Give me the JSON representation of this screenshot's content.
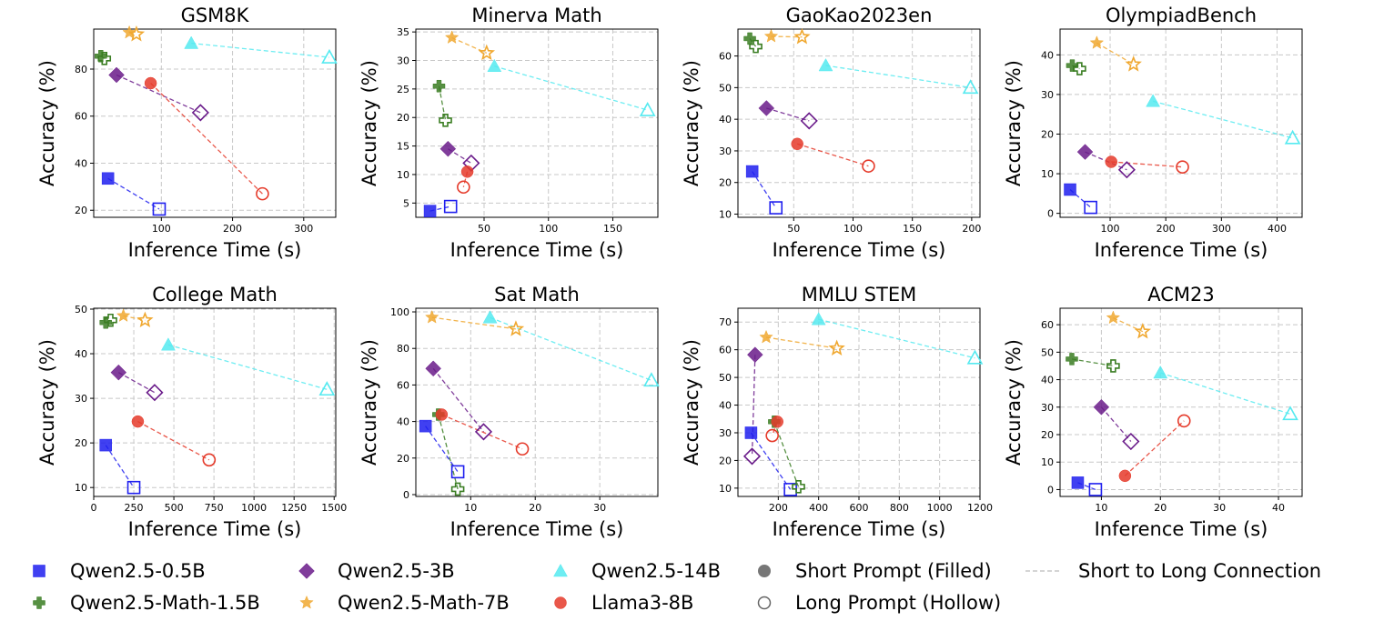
{
  "chart_data": {
    "type": "scatter",
    "xlabel": "Inference Time (s)",
    "ylabel": "Accuracy (%)",
    "grid": true,
    "legend_position": "bottom",
    "series": [
      {
        "key": "q05",
        "name": "Qwen2.5-0.5B",
        "color": "#1f1fef",
        "marker": "square"
      },
      {
        "key": "q15",
        "name": "Qwen2.5-Math-1.5B",
        "color": "#3a7d22",
        "marker": "plus"
      },
      {
        "key": "q3",
        "name": "Qwen2.5-3B",
        "color": "#6a1b8a",
        "marker": "diamond"
      },
      {
        "key": "q7",
        "name": "Qwen2.5-Math-7B",
        "color": "#f0a830",
        "marker": "star"
      },
      {
        "key": "q14",
        "name": "Qwen2.5-14B",
        "color": "#55eaf0",
        "marker": "triangle"
      },
      {
        "key": "l8",
        "name": "Llama3-8B",
        "color": "#e53a2a",
        "marker": "circle"
      }
    ],
    "style_legend": [
      {
        "label": "Short Prompt (Filled)",
        "marker": "filled-circle"
      },
      {
        "label": "Long Prompt (Hollow)",
        "marker": "hollow-circle"
      },
      {
        "label": "Short to Long Connection",
        "marker": "dashed-line"
      }
    ],
    "panels": [
      {
        "title": "GSM8K",
        "xlim": [
          5,
          345
        ],
        "ylim": [
          17,
          97
        ],
        "xticks": [
          100,
          200,
          300
        ],
        "yticks": [
          20,
          40,
          60,
          80
        ],
        "points": {
          "q05": {
            "short": [
              25,
              33.5
            ],
            "long": [
              97,
              20.5
            ]
          },
          "q15": {
            "short": [
              15,
              85.5
            ],
            "long": [
              20,
              84.5
            ]
          },
          "q3": {
            "short": [
              37,
              77.5
            ],
            "long": [
              155,
              61.5
            ]
          },
          "q7": {
            "short": [
              55,
              95.5
            ],
            "long": [
              65,
              94.8
            ]
          },
          "q14": {
            "short": [
              142,
              91
            ],
            "long": [
              336,
              85
            ]
          },
          "l8": {
            "short": [
              85,
              74
            ],
            "long": [
              242,
              27
            ]
          }
        }
      },
      {
        "title": "Minerva Math",
        "xlim": [
          -3,
          185
        ],
        "ylim": [
          2.5,
          35.5
        ],
        "xticks": [
          50,
          100,
          150
        ],
        "yticks": [
          5,
          10,
          15,
          20,
          25,
          30,
          35
        ],
        "points": {
          "q05": {
            "short": [
              8,
              3.6
            ],
            "long": [
              24,
              4.4
            ]
          },
          "q15": {
            "short": [
              15,
              25.5
            ],
            "long": [
              20,
              19.5
            ]
          },
          "q3": {
            "short": [
              22,
              14.5
            ],
            "long": [
              40,
              12
            ]
          },
          "q7": {
            "short": [
              25,
              34
            ],
            "long": [
              52,
              31.3
            ]
          },
          "q14": {
            "short": [
              58,
              29
            ],
            "long": [
              177,
              21.3
            ]
          },
          "l8": {
            "short": [
              37,
              10.5
            ],
            "long": [
              34,
              7.8
            ]
          }
        }
      },
      {
        "title": "GaoKao2023en",
        "xlim": [
          3,
          207
        ],
        "ylim": [
          9,
          68.5
        ],
        "xticks": [
          50,
          100,
          150,
          200
        ],
        "yticks": [
          10,
          20,
          30,
          40,
          50,
          60
        ],
        "points": {
          "q05": {
            "short": [
              15,
              23.5
            ],
            "long": [
              35,
              12
            ]
          },
          "q15": {
            "short": [
              13,
              65.5
            ],
            "long": [
              18,
              63
            ]
          },
          "q3": {
            "short": [
              27,
              43.5
            ],
            "long": [
              63,
              39.5
            ]
          },
          "q7": {
            "short": [
              31,
              66.2
            ],
            "long": [
              57,
              66
            ]
          },
          "q14": {
            "short": [
              77,
              57
            ],
            "long": [
              199,
              50
            ]
          },
          "l8": {
            "short": [
              53,
              32.2
            ],
            "long": [
              113,
              25.2
            ]
          }
        }
      },
      {
        "title": "OlympiadBench",
        "xlim": [
          10,
          445
        ],
        "ylim": [
          -1,
          46.5
        ],
        "xticks": [
          100,
          200,
          300,
          400
        ],
        "yticks": [
          0,
          10,
          20,
          30,
          40
        ],
        "points": {
          "q05": {
            "short": [
              28,
              6
            ],
            "long": [
              65,
              1.5
            ]
          },
          "q15": {
            "short": [
              32,
              37.3
            ],
            "long": [
              45,
              36.5
            ]
          },
          "q3": {
            "short": [
              55,
              15.5
            ],
            "long": [
              130,
              11
            ]
          },
          "q7": {
            "short": [
              76,
              43
            ],
            "long": [
              142,
              37.6
            ]
          },
          "q14": {
            "short": [
              177,
              28.3
            ],
            "long": [
              428,
              19
            ]
          },
          "l8": {
            "short": [
              102,
              13
            ],
            "long": [
              230,
              11.7
            ]
          }
        }
      },
      {
        "title": "College Math",
        "xlim": [
          0,
          1510
        ],
        "ylim": [
          8,
          50.2
        ],
        "xticks": [
          0,
          250,
          500,
          750,
          1000,
          1250,
          1500
        ],
        "yticks": [
          10,
          20,
          30,
          40,
          50
        ],
        "points": {
          "q05": {
            "short": [
              75,
              19.5
            ],
            "long": [
              250,
              10
            ]
          },
          "q15": {
            "short": [
              75,
              47
            ],
            "long": [
              105,
              47.5
            ]
          },
          "q3": {
            "short": [
              155,
              35.8
            ],
            "long": [
              380,
              31.3
            ]
          },
          "q7": {
            "short": [
              185,
              48.5
            ],
            "long": [
              320,
              47.5
            ]
          },
          "q14": {
            "short": [
              465,
              42
            ],
            "long": [
              1455,
              32
            ]
          },
          "l8": {
            "short": [
              275,
              24.8
            ],
            "long": [
              720,
              16.2
            ]
          }
        }
      },
      {
        "title": "Sat Math",
        "xlim": [
          1.5,
          39
        ],
        "ylim": [
          -1,
          102
        ],
        "xticks": [
          10,
          20,
          30
        ],
        "yticks": [
          0,
          20,
          40,
          60,
          80,
          100
        ],
        "points": {
          "q05": {
            "short": [
              3,
              37.5
            ],
            "long": [
              8,
              12.5
            ]
          },
          "q15": {
            "short": [
              5,
              43.8
            ],
            "long": [
              8,
              3
            ]
          },
          "q3": {
            "short": [
              4.2,
              69
            ],
            "long": [
              12,
              34.4
            ]
          },
          "q7": {
            "short": [
              4,
              97
            ],
            "long": [
              17,
              90.6
            ]
          },
          "q14": {
            "short": [
              13,
              96.9
            ],
            "long": [
              38,
              62.5
            ]
          },
          "l8": {
            "short": [
              5.5,
              43.8
            ],
            "long": [
              18,
              25
            ]
          }
        }
      },
      {
        "title": "MMLU STEM",
        "xlim": [
          0,
          1200
        ],
        "ylim": [
          7,
          75
        ],
        "xticks": [
          200,
          400,
          600,
          800,
          1000,
          1200
        ],
        "yticks": [
          10,
          20,
          30,
          40,
          50,
          60,
          70
        ],
        "points": {
          "q05": {
            "short": [
              65,
              30
            ],
            "long": [
              260,
              9.5
            ]
          },
          "q15": {
            "short": [
              180,
              34
            ],
            "long": [
              300,
              10.5
            ]
          },
          "q3": {
            "short": [
              85,
              58.2
            ],
            "long": [
              70,
              21.5
            ]
          },
          "q7": {
            "short": [
              140,
              64.5
            ],
            "long": [
              490,
              60.5
            ]
          },
          "q14": {
            "short": [
              400,
              71
            ],
            "long": [
              1175,
              57
            ]
          },
          "l8": {
            "short": [
              195,
              34
            ],
            "long": [
              170,
              29
            ]
          }
        }
      },
      {
        "title": "ACM23",
        "xlim": [
          3,
          44
        ],
        "ylim": [
          -2.5,
          66
        ],
        "xticks": [
          10,
          20,
          30,
          40
        ],
        "yticks": [
          0,
          10,
          20,
          30,
          40,
          50,
          60
        ],
        "points": {
          "q05": {
            "short": [
              6,
              2.5
            ],
            "long": [
              9,
              0
            ]
          },
          "q15": {
            "short": [
              5,
              47.5
            ],
            "long": [
              12,
              45
            ]
          },
          "q3": {
            "short": [
              10,
              30
            ],
            "long": [
              15,
              17.5
            ]
          },
          "q7": {
            "short": [
              12,
              62.5
            ],
            "long": [
              17,
              57.5
            ]
          },
          "q14": {
            "short": [
              20,
              42.5
            ],
            "long": [
              42,
              27.5
            ]
          },
          "l8": {
            "short": [
              14,
              5
            ],
            "long": [
              24,
              25
            ]
          }
        }
      }
    ]
  }
}
